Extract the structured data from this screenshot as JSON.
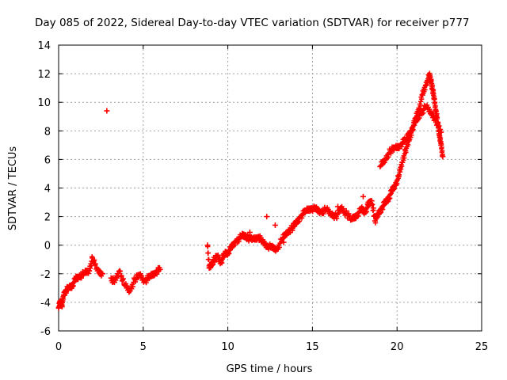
{
  "chart_data": {
    "type": "scatter",
    "title": "Day 085 of 2022, Sidereal Day-to-day VTEC variation (SDTVAR) for receiver p777",
    "xlabel": "GPS time / hours",
    "ylabel": "SDTVAR / TECUs",
    "xlim": [
      0,
      25
    ],
    "ylim": [
      -6,
      14
    ],
    "x_ticks": [
      0,
      5,
      10,
      15,
      20,
      25
    ],
    "y_ticks": [
      -6,
      -4,
      -2,
      0,
      2,
      4,
      6,
      8,
      10,
      12,
      14
    ],
    "grid": true,
    "marker": "+",
    "color": "#ff0000",
    "series": [
      {
        "name": "SDTVAR",
        "x": [
          0.0,
          0.1,
          0.2,
          0.3,
          0.4,
          0.6,
          0.8,
          1.0,
          1.2,
          1.5,
          1.8,
          2.0,
          2.3,
          2.6,
          2.85,
          3.1,
          3.3,
          3.6,
          3.9,
          4.2,
          4.5,
          4.8,
          5.1,
          5.4,
          5.7,
          6.0,
          8.8,
          8.9,
          9.0,
          9.2,
          9.4,
          9.6,
          9.8,
          10.0,
          10.2,
          10.5,
          10.8,
          11.0,
          11.2,
          11.5,
          11.8,
          12.0,
          12.3,
          12.6,
          12.9,
          13.2,
          13.5,
          13.8,
          14.0,
          14.3,
          14.6,
          14.9,
          15.2,
          15.5,
          15.8,
          16.1,
          16.4,
          16.7,
          17.0,
          17.3,
          17.6,
          17.9,
          18.1,
          18.3,
          18.5,
          18.7,
          18.9,
          19.1,
          19.3,
          19.5,
          19.7,
          19.9,
          20.1,
          20.3,
          20.5,
          20.7,
          20.9,
          21.1,
          21.3,
          21.5,
          21.7,
          21.9,
          22.0,
          22.1,
          22.2,
          22.3,
          22.4,
          22.5,
          22.6,
          22.7,
          19.0,
          19.3,
          19.6,
          19.9,
          20.2,
          20.5,
          20.8,
          21.1,
          21.4,
          21.7,
          22.0,
          22.3,
          22.6,
          11.3,
          11.8,
          12.3,
          12.8,
          13.3,
          16.5,
          17.0,
          17.5,
          18.0,
          18.3,
          18.6
        ],
        "y": [
          -4.4,
          -3.9,
          -4.2,
          -3.5,
          -3.2,
          -3.0,
          -2.8,
          -2.4,
          -2.2,
          -2.0,
          -1.8,
          -0.9,
          -1.8,
          -2.0,
          9.4,
          -2.3,
          -2.6,
          -1.8,
          -2.8,
          -3.2,
          -2.4,
          -2.1,
          -2.5,
          -2.2,
          -1.9,
          -1.7,
          0.0,
          -1.6,
          -1.4,
          -1.0,
          -0.8,
          -1.2,
          -0.6,
          -0.5,
          -0.2,
          0.3,
          0.6,
          0.7,
          0.5,
          0.4,
          0.6,
          0.3,
          0.0,
          -0.2,
          -0.3,
          0.4,
          0.9,
          1.2,
          1.5,
          2.0,
          2.4,
          2.6,
          2.5,
          2.3,
          2.5,
          2.2,
          2.0,
          2.6,
          2.2,
          1.8,
          2.1,
          2.5,
          2.3,
          2.8,
          3.1,
          1.7,
          2.2,
          2.6,
          3.0,
          3.3,
          3.8,
          4.2,
          4.8,
          5.8,
          6.6,
          7.3,
          8.1,
          8.9,
          9.6,
          10.5,
          11.2,
          11.9,
          11.6,
          10.9,
          10.2,
          9.4,
          8.6,
          7.8,
          7.0,
          6.2,
          5.5,
          6.0,
          6.6,
          6.8,
          7.0,
          7.4,
          8.0,
          8.6,
          9.2,
          9.7,
          9.3,
          8.7,
          7.9,
          0.9,
          0.5,
          2.0,
          1.4,
          0.2,
          2.7,
          2.4,
          1.9,
          3.4,
          3.0,
          2.6
        ]
      }
    ]
  }
}
